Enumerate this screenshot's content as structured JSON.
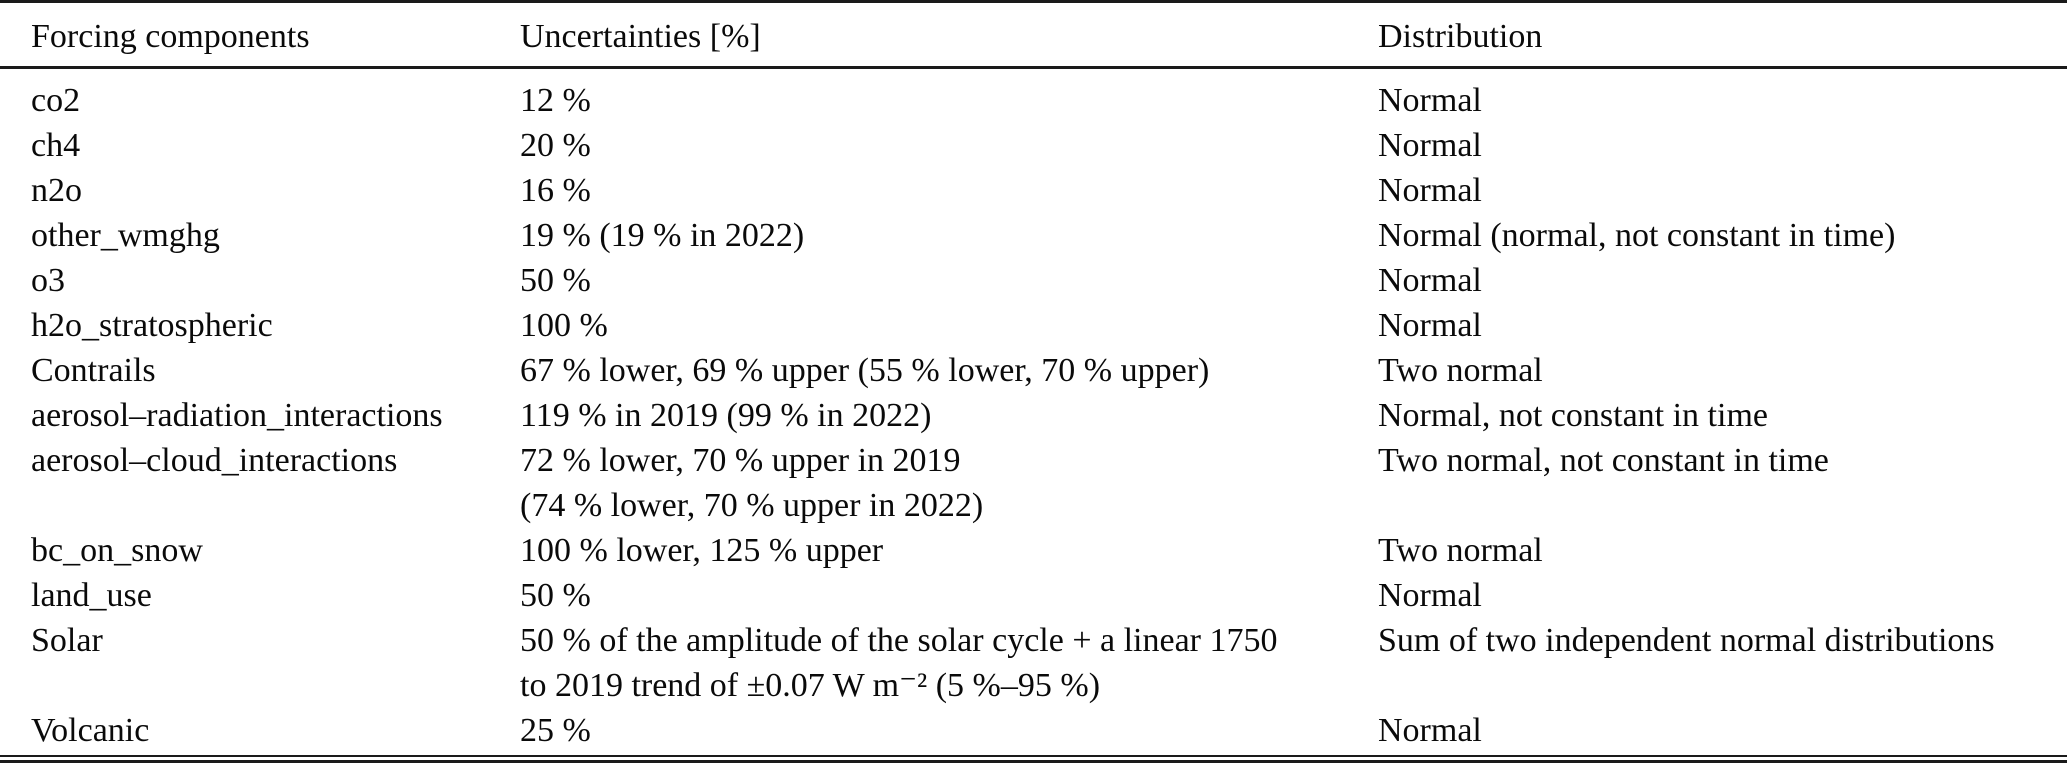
{
  "page": {
    "background_color": "#ffffff",
    "text_color": "#0a0a0a",
    "rule_color": "#1a1a1a"
  },
  "table": {
    "columns": [
      "Forcing components",
      "Uncertainties [%]",
      "Distribution"
    ],
    "rows": [
      {
        "component": "co2",
        "uncertainty": "12 %",
        "distribution": "Normal"
      },
      {
        "component": "ch4",
        "uncertainty": "20 %",
        "distribution": "Normal"
      },
      {
        "component": "n2o",
        "uncertainty": "16 %",
        "distribution": "Normal"
      },
      {
        "component": "other_wmghg",
        "uncertainty": "19 % (19 % in 2022)",
        "distribution": "Normal (normal, not constant in time)"
      },
      {
        "component": "o3",
        "uncertainty": "50 %",
        "distribution": "Normal"
      },
      {
        "component": "h2o_stratospheric",
        "uncertainty": "100 %",
        "distribution": "Normal"
      },
      {
        "component": "Contrails",
        "uncertainty": "67 % lower, 69 % upper (55 % lower, 70 % upper)",
        "distribution": "Two normal"
      },
      {
        "component": "aerosol–radiation_interactions",
        "uncertainty": "119 % in 2019 (99 % in 2022)",
        "distribution": "Normal, not constant in time"
      },
      {
        "component": "aerosol–cloud_interactions",
        "uncertainty": [
          "72 % lower, 70 % upper in 2019",
          "(74 % lower, 70 % upper in 2022)"
        ],
        "distribution": "Two normal, not constant in time"
      },
      {
        "component": "bc_on_snow",
        "uncertainty": "100 % lower, 125 % upper",
        "distribution": "Two normal"
      },
      {
        "component": "land_use",
        "uncertainty": "50 %",
        "distribution": "Normal"
      },
      {
        "component": "Solar",
        "uncertainty": [
          "50 % of the amplitude of the solar cycle + a linear 1750",
          "to 2019 trend of ±0.07 W m⁻² (5 %–95 %)"
        ],
        "distribution": "Sum of two independent normal distributions"
      },
      {
        "component": "Volcanic",
        "uncertainty": "25 %",
        "distribution": "Normal"
      }
    ]
  }
}
